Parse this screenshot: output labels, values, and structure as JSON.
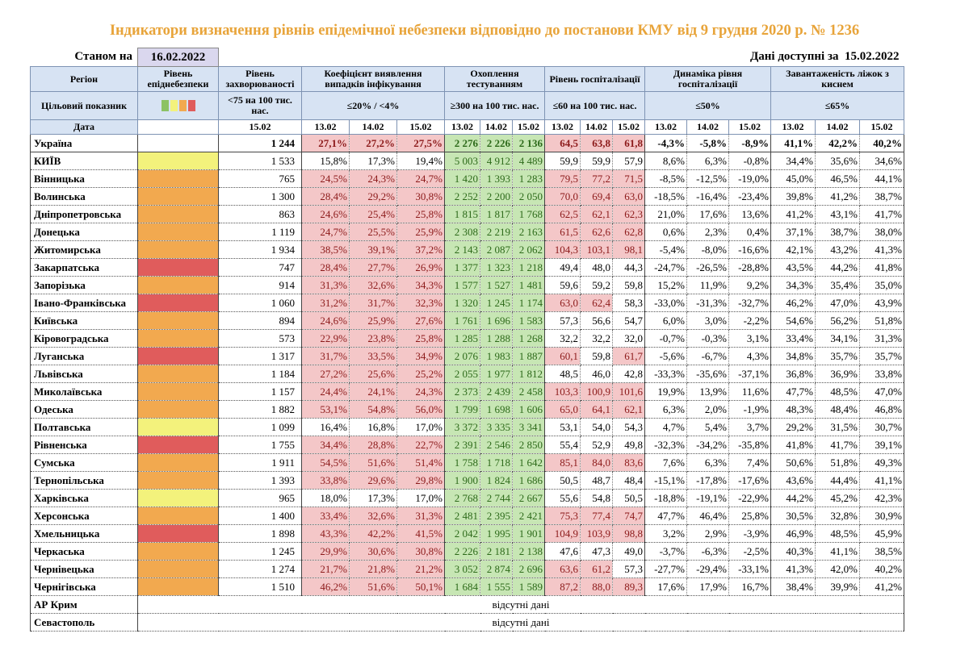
{
  "title": "Індикатори визначення рівнів епідемічної небезпеки відповідно до постанови КМУ від 9 грудня 2020 р. № 1236",
  "as_of_label": "Станом на",
  "as_of_date": "16.02.2022",
  "data_available_label": "Дані доступні за",
  "data_available_date": "15.02.2022",
  "headers": {
    "region": "Регіон",
    "danger_level": "Рівень епіднебезпеки",
    "incidence": "Рівень захворюваності",
    "detection": "Коефіцієнт виявлення випадків інфікування",
    "testing": "Охоплення тестуванням",
    "hospitalization": "Рівень госпіталізації",
    "hosp_dynamics": "Динаміка рівня госпіталізації",
    "oxygen_beds": "Завантаженість ліжок з киснем"
  },
  "target_row": {
    "label": "Цільовий показник",
    "incidence": "<75 на 100 тис. нас.",
    "detection": "≤20% / <4%",
    "testing": "≥300 на 100 тис. нас.",
    "hospitalization": "≤60 на 100 тис. нас.",
    "hosp_dynamics": "≤50%",
    "oxygen_beds": "≤65%"
  },
  "date_row": {
    "label": "Дата",
    "incidence": "15.02",
    "d1": "13.02",
    "d2": "14.02",
    "d3": "15.02"
  },
  "level_colors": {
    "yellow": "#f3f27c",
    "orange": "#f2a94f",
    "red": "#e05c5c",
    "green": "#8cc264"
  },
  "rows": [
    {
      "region": "Україна",
      "level": "",
      "inc": "1 244",
      "det": [
        "27,1%",
        "27,2%",
        "27,5%"
      ],
      "test": [
        "2 276",
        "2 226",
        "2 136"
      ],
      "hosp": [
        "64,5",
        "63,8",
        "61,8"
      ],
      "dyn": [
        "-4,3%",
        "-5,8%",
        "-8,9%"
      ],
      "oxy": [
        "41,1%",
        "42,2%",
        "40,2%"
      ]
    },
    {
      "region": "КИЇВ",
      "level": "yellow",
      "inc": "1 533",
      "det": [
        "15,8%",
        "17,3%",
        "19,4%"
      ],
      "test": [
        "5 003",
        "4 912",
        "4 489"
      ],
      "hosp": [
        "59,9",
        "59,9",
        "57,9"
      ],
      "dyn": [
        "8,6%",
        "6,3%",
        "-0,8%"
      ],
      "oxy": [
        "34,4%",
        "35,6%",
        "34,6%"
      ]
    },
    {
      "region": "Вінницька",
      "level": "orange",
      "inc": "765",
      "det": [
        "24,5%",
        "24,3%",
        "24,7%"
      ],
      "test": [
        "1 420",
        "1 393",
        "1 283"
      ],
      "hosp": [
        "79,5",
        "77,2",
        "71,5"
      ],
      "dyn": [
        "-8,5%",
        "-12,5%",
        "-19,0%"
      ],
      "oxy": [
        "45,0%",
        "46,5%",
        "44,1%"
      ]
    },
    {
      "region": "Волинська",
      "level": "orange",
      "inc": "1 300",
      "det": [
        "28,4%",
        "29,2%",
        "30,8%"
      ],
      "test": [
        "2 252",
        "2 200",
        "2 050"
      ],
      "hosp": [
        "70,0",
        "69,4",
        "63,0"
      ],
      "dyn": [
        "-18,5%",
        "-16,4%",
        "-23,4%"
      ],
      "oxy": [
        "39,8%",
        "41,2%",
        "38,7%"
      ]
    },
    {
      "region": "Дніпропетровська",
      "level": "orange",
      "inc": "863",
      "det": [
        "24,6%",
        "25,4%",
        "25,8%"
      ],
      "test": [
        "1 815",
        "1 817",
        "1 768"
      ],
      "hosp": [
        "62,5",
        "62,1",
        "62,3"
      ],
      "dyn": [
        "21,0%",
        "17,6%",
        "13,6%"
      ],
      "oxy": [
        "41,2%",
        "43,1%",
        "41,7%"
      ]
    },
    {
      "region": "Донецька",
      "level": "orange",
      "inc": "1 119",
      "det": [
        "24,7%",
        "25,5%",
        "25,9%"
      ],
      "test": [
        "2 308",
        "2 219",
        "2 163"
      ],
      "hosp": [
        "61,5",
        "62,6",
        "62,8"
      ],
      "dyn": [
        "0,6%",
        "2,3%",
        "0,4%"
      ],
      "oxy": [
        "37,1%",
        "38,7%",
        "38,0%"
      ]
    },
    {
      "region": "Житомирська",
      "level": "orange",
      "inc": "1 934",
      "det": [
        "38,5%",
        "39,1%",
        "37,2%"
      ],
      "test": [
        "2 143",
        "2 087",
        "2 062"
      ],
      "hosp": [
        "104,3",
        "103,1",
        "98,1"
      ],
      "dyn": [
        "-5,4%",
        "-8,0%",
        "-16,6%"
      ],
      "oxy": [
        "42,1%",
        "43,2%",
        "41,3%"
      ]
    },
    {
      "region": "Закарпатська",
      "level": "red",
      "inc": "747",
      "det": [
        "28,4%",
        "27,7%",
        "26,9%"
      ],
      "test": [
        "1 377",
        "1 323",
        "1 218"
      ],
      "hosp": [
        "49,4",
        "48,0",
        "44,3"
      ],
      "dyn": [
        "-24,7%",
        "-26,5%",
        "-28,8%"
      ],
      "oxy": [
        "43,5%",
        "44,2%",
        "41,8%"
      ]
    },
    {
      "region": "Запорізька",
      "level": "orange",
      "inc": "914",
      "det": [
        "31,3%",
        "32,6%",
        "34,3%"
      ],
      "test": [
        "1 577",
        "1 527",
        "1 481"
      ],
      "hosp": [
        "59,6",
        "59,2",
        "59,8"
      ],
      "dyn": [
        "15,2%",
        "11,9%",
        "9,2%"
      ],
      "oxy": [
        "34,3%",
        "35,4%",
        "35,0%"
      ]
    },
    {
      "region": "Івано-Франківська",
      "level": "red",
      "inc": "1 060",
      "det": [
        "31,2%",
        "31,7%",
        "32,3%"
      ],
      "test": [
        "1 320",
        "1 245",
        "1 174"
      ],
      "hosp": [
        "63,0",
        "62,4",
        "58,3"
      ],
      "dyn": [
        "-33,0%",
        "-31,3%",
        "-32,7%"
      ],
      "oxy": [
        "46,2%",
        "47,0%",
        "43,9%"
      ]
    },
    {
      "region": "Київська",
      "level": "orange",
      "inc": "894",
      "det": [
        "24,6%",
        "25,9%",
        "27,6%"
      ],
      "test": [
        "1 761",
        "1 696",
        "1 583"
      ],
      "hosp": [
        "57,3",
        "56,6",
        "54,7"
      ],
      "dyn": [
        "6,0%",
        "3,0%",
        "-2,2%"
      ],
      "oxy": [
        "54,6%",
        "56,2%",
        "51,8%"
      ]
    },
    {
      "region": "Кіровоградська",
      "level": "orange",
      "inc": "573",
      "det": [
        "22,9%",
        "23,8%",
        "25,8%"
      ],
      "test": [
        "1 285",
        "1 288",
        "1 268"
      ],
      "hosp": [
        "32,2",
        "32,2",
        "32,0"
      ],
      "dyn": [
        "-0,7%",
        "-0,3%",
        "3,1%"
      ],
      "oxy": [
        "33,4%",
        "34,1%",
        "31,3%"
      ]
    },
    {
      "region": "Луганська",
      "level": "red",
      "inc": "1 317",
      "det": [
        "31,7%",
        "33,5%",
        "34,9%"
      ],
      "test": [
        "2 076",
        "1 983",
        "1 887"
      ],
      "hosp": [
        "60,1",
        "59,8",
        "61,7"
      ],
      "dyn": [
        "-5,6%",
        "-6,7%",
        "4,3%"
      ],
      "oxy": [
        "34,8%",
        "35,7%",
        "35,7%"
      ]
    },
    {
      "region": "Львівська",
      "level": "orange",
      "inc": "1 184",
      "det": [
        "27,2%",
        "25,6%",
        "25,2%"
      ],
      "test": [
        "2 055",
        "1 977",
        "1 812"
      ],
      "hosp": [
        "48,5",
        "46,0",
        "42,8"
      ],
      "dyn": [
        "-33,3%",
        "-35,6%",
        "-37,1%"
      ],
      "oxy": [
        "36,8%",
        "36,9%",
        "33,8%"
      ]
    },
    {
      "region": "Миколаївська",
      "level": "orange",
      "inc": "1 157",
      "det": [
        "24,4%",
        "24,1%",
        "24,3%"
      ],
      "test": [
        "2 373",
        "2 439",
        "2 458"
      ],
      "hosp": [
        "103,3",
        "100,9",
        "101,6"
      ],
      "dyn": [
        "19,9%",
        "13,9%",
        "11,6%"
      ],
      "oxy": [
        "47,7%",
        "48,5%",
        "47,0%"
      ]
    },
    {
      "region": "Одеська",
      "level": "orange",
      "inc": "1 882",
      "det": [
        "53,1%",
        "54,8%",
        "56,0%"
      ],
      "test": [
        "1 799",
        "1 698",
        "1 606"
      ],
      "hosp": [
        "65,0",
        "64,1",
        "62,1"
      ],
      "dyn": [
        "6,3%",
        "2,0%",
        "-1,9%"
      ],
      "oxy": [
        "48,3%",
        "48,4%",
        "46,8%"
      ]
    },
    {
      "region": "Полтавська",
      "level": "yellow",
      "inc": "1 099",
      "det": [
        "16,4%",
        "16,8%",
        "17,0%"
      ],
      "test": [
        "3 372",
        "3 335",
        "3 341"
      ],
      "hosp": [
        "53,1",
        "54,0",
        "54,3"
      ],
      "dyn": [
        "4,7%",
        "5,4%",
        "3,7%"
      ],
      "oxy": [
        "29,2%",
        "31,5%",
        "30,7%"
      ]
    },
    {
      "region": "Рівненська",
      "level": "red",
      "inc": "1 755",
      "det": [
        "34,4%",
        "28,8%",
        "22,7%"
      ],
      "test": [
        "2 391",
        "2 546",
        "2 850"
      ],
      "hosp": [
        "55,4",
        "52,9",
        "49,8"
      ],
      "dyn": [
        "-32,3%",
        "-34,2%",
        "-35,8%"
      ],
      "oxy": [
        "41,8%",
        "41,7%",
        "39,1%"
      ]
    },
    {
      "region": "Сумська",
      "level": "orange",
      "inc": "1 911",
      "det": [
        "54,5%",
        "51,6%",
        "51,4%"
      ],
      "test": [
        "1 758",
        "1 718",
        "1 642"
      ],
      "hosp": [
        "85,1",
        "84,0",
        "83,6"
      ],
      "dyn": [
        "7,6%",
        "6,3%",
        "7,4%"
      ],
      "oxy": [
        "50,6%",
        "51,8%",
        "49,3%"
      ]
    },
    {
      "region": "Тернопільська",
      "level": "orange",
      "inc": "1 393",
      "det": [
        "33,8%",
        "29,6%",
        "29,8%"
      ],
      "test": [
        "1 900",
        "1 824",
        "1 686"
      ],
      "hosp": [
        "50,5",
        "48,7",
        "48,4"
      ],
      "dyn": [
        "-15,1%",
        "-17,8%",
        "-17,6%"
      ],
      "oxy": [
        "43,6%",
        "44,4%",
        "41,1%"
      ]
    },
    {
      "region": "Харківська",
      "level": "yellow",
      "inc": "965",
      "det": [
        "18,0%",
        "17,3%",
        "17,0%"
      ],
      "test": [
        "2 768",
        "2 744",
        "2 667"
      ],
      "hosp": [
        "55,6",
        "54,8",
        "50,5"
      ],
      "dyn": [
        "-18,8%",
        "-19,1%",
        "-22,9%"
      ],
      "oxy": [
        "44,2%",
        "45,2%",
        "42,3%"
      ]
    },
    {
      "region": "Херсонська",
      "level": "orange",
      "inc": "1 400",
      "det": [
        "33,4%",
        "32,6%",
        "31,3%"
      ],
      "test": [
        "2 481",
        "2 395",
        "2 421"
      ],
      "hosp": [
        "75,3",
        "77,4",
        "74,7"
      ],
      "dyn": [
        "47,7%",
        "46,4%",
        "25,8%"
      ],
      "oxy": [
        "30,5%",
        "32,8%",
        "30,9%"
      ]
    },
    {
      "region": "Хмельницька",
      "level": "red",
      "inc": "1 898",
      "det": [
        "43,3%",
        "42,2%",
        "41,5%"
      ],
      "test": [
        "2 042",
        "1 995",
        "1 901"
      ],
      "hosp": [
        "104,9",
        "103,9",
        "98,8"
      ],
      "dyn": [
        "3,2%",
        "2,9%",
        "-3,9%"
      ],
      "oxy": [
        "46,9%",
        "48,5%",
        "45,9%"
      ]
    },
    {
      "region": "Черкаська",
      "level": "orange",
      "inc": "1 245",
      "det": [
        "29,9%",
        "30,6%",
        "30,8%"
      ],
      "test": [
        "2 226",
        "2 181",
        "2 138"
      ],
      "hosp": [
        "47,6",
        "47,3",
        "49,0"
      ],
      "dyn": [
        "-3,7%",
        "-6,3%",
        "-2,5%"
      ],
      "oxy": [
        "40,3%",
        "41,1%",
        "38,5%"
      ]
    },
    {
      "region": "Чернівецька",
      "level": "orange",
      "inc": "1 274",
      "det": [
        "21,7%",
        "21,8%",
        "21,2%"
      ],
      "test": [
        "3 052",
        "2 874",
        "2 696"
      ],
      "hosp": [
        "63,6",
        "61,2",
        "57,3"
      ],
      "dyn": [
        "-27,7%",
        "-29,4%",
        "-33,1%"
      ],
      "oxy": [
        "41,3%",
        "42,0%",
        "40,2%"
      ]
    },
    {
      "region": "Чернігівська",
      "level": "orange",
      "inc": "1 510",
      "det": [
        "46,2%",
        "51,6%",
        "50,1%"
      ],
      "test": [
        "1 684",
        "1 555",
        "1 589"
      ],
      "hosp": [
        "87,2",
        "88,0",
        "89,3"
      ],
      "dyn": [
        "17,6%",
        "17,9%",
        "16,7%"
      ],
      "oxy": [
        "38,4%",
        "39,9%",
        "41,2%"
      ]
    }
  ],
  "nodata_rows": [
    {
      "region": "АР Крим",
      "text": "відсутні дані"
    },
    {
      "region": "Севастополь",
      "text": "відсутні дані"
    }
  ]
}
